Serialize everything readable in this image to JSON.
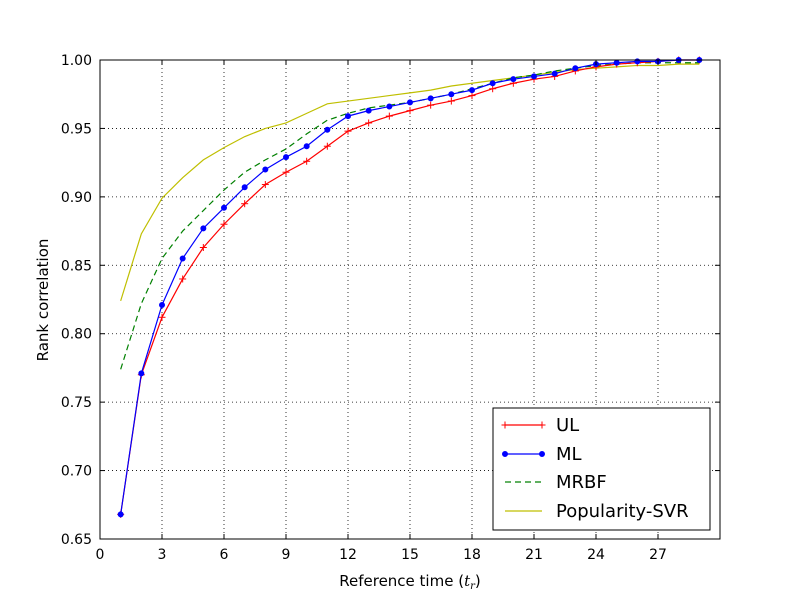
{
  "chart_data": {
    "type": "line",
    "xlabel": "Reference time (",
    "xlabel_var": "t",
    "xlabel_sub": "r",
    "xlabel_end": ")",
    "ylabel": "Rank correlation",
    "xlim": [
      0,
      30
    ],
    "ylim": [
      0.65,
      1.0
    ],
    "xticks": [
      0,
      3,
      6,
      9,
      12,
      15,
      18,
      21,
      24,
      27
    ],
    "xtick_labels": [
      "0",
      "3",
      "6",
      "9",
      "12",
      "15",
      "18",
      "21",
      "24",
      "27"
    ],
    "yticks": [
      0.65,
      0.7,
      0.75,
      0.8,
      0.85,
      0.9,
      0.95,
      1.0
    ],
    "ytick_labels": [
      "0.65",
      "0.70",
      "0.75",
      "0.80",
      "0.85",
      "0.90",
      "0.95",
      "1.00"
    ],
    "grid": true,
    "legend_position": "lower-right",
    "x": [
      1,
      2,
      3,
      4,
      5,
      6,
      7,
      8,
      9,
      10,
      11,
      12,
      13,
      14,
      15,
      16,
      17,
      18,
      19,
      20,
      21,
      22,
      23,
      24,
      25,
      26,
      27,
      28,
      29
    ],
    "series": [
      {
        "name": "UL",
        "color": "#ff0000",
        "style": "solid",
        "marker": "plus",
        "values": [
          0.668,
          0.77,
          0.812,
          0.84,
          0.863,
          0.88,
          0.895,
          0.909,
          0.918,
          0.926,
          0.937,
          0.948,
          0.954,
          0.959,
          0.963,
          0.967,
          0.97,
          0.974,
          0.979,
          0.983,
          0.986,
          0.988,
          0.992,
          0.995,
          0.997,
          0.998,
          0.999,
          1.0,
          1.0
        ]
      },
      {
        "name": "ML",
        "color": "#0000ff",
        "style": "solid",
        "marker": "dot",
        "values": [
          0.668,
          0.771,
          0.821,
          0.855,
          0.877,
          0.892,
          0.907,
          0.92,
          0.929,
          0.937,
          0.949,
          0.959,
          0.963,
          0.966,
          0.969,
          0.972,
          0.975,
          0.978,
          0.983,
          0.986,
          0.988,
          0.99,
          0.994,
          0.997,
          0.998,
          0.999,
          0.999,
          1.0,
          1.0
        ]
      },
      {
        "name": "MRBF",
        "color": "#008000",
        "style": "dashed",
        "marker": "none",
        "values": [
          0.774,
          0.822,
          0.855,
          0.875,
          0.89,
          0.905,
          0.918,
          0.927,
          0.935,
          0.946,
          0.956,
          0.961,
          0.965,
          0.967,
          0.969,
          0.972,
          0.975,
          0.979,
          0.983,
          0.987,
          0.989,
          0.992,
          0.994,
          0.996,
          0.997,
          0.998,
          0.998,
          0.998,
          0.998
        ]
      },
      {
        "name": "Popularity-SVR",
        "color": "#bfbf00",
        "style": "solid",
        "marker": "none",
        "values": [
          0.824,
          0.873,
          0.899,
          0.914,
          0.927,
          0.936,
          0.944,
          0.95,
          0.954,
          0.961,
          0.968,
          0.97,
          0.972,
          0.974,
          0.976,
          0.978,
          0.981,
          0.983,
          0.985,
          0.987,
          0.989,
          0.991,
          0.993,
          0.994,
          0.995,
          0.996,
          0.996,
          0.997,
          0.997
        ]
      }
    ]
  }
}
